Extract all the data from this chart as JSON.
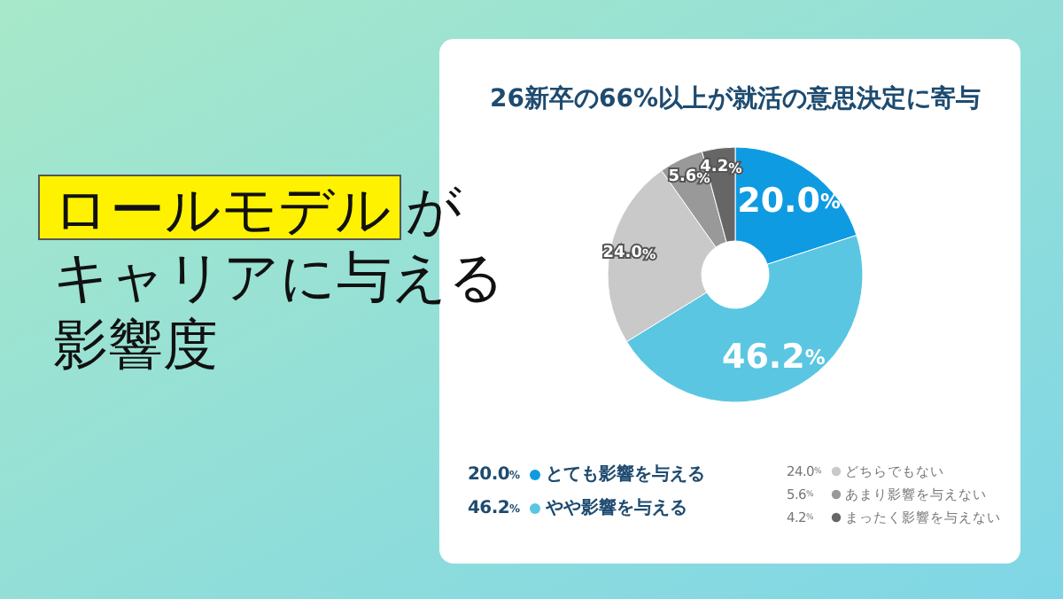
{
  "chart_data": {
    "type": "donut",
    "title": "ロールモデルがキャリアに与える影響度",
    "subtitle": "26新卒の66%以上が就活の意思決定に寄与",
    "categories": [
      "とても影響を与える",
      "やや影響を与える",
      "どちらでもない",
      "あまり影響を与えない",
      "まったく影響を与えない"
    ],
    "values": [
      20.0,
      46.2,
      24.0,
      5.6,
      4.2
    ],
    "value_labels": [
      "20.0%",
      "46.2%",
      "24.0%",
      "5.6%",
      "4.2%"
    ],
    "colors": [
      "#0e9be2",
      "#5ac6e2",
      "#c9c9c9",
      "#999999",
      "#666666"
    ],
    "legend": "bottom"
  }
}
